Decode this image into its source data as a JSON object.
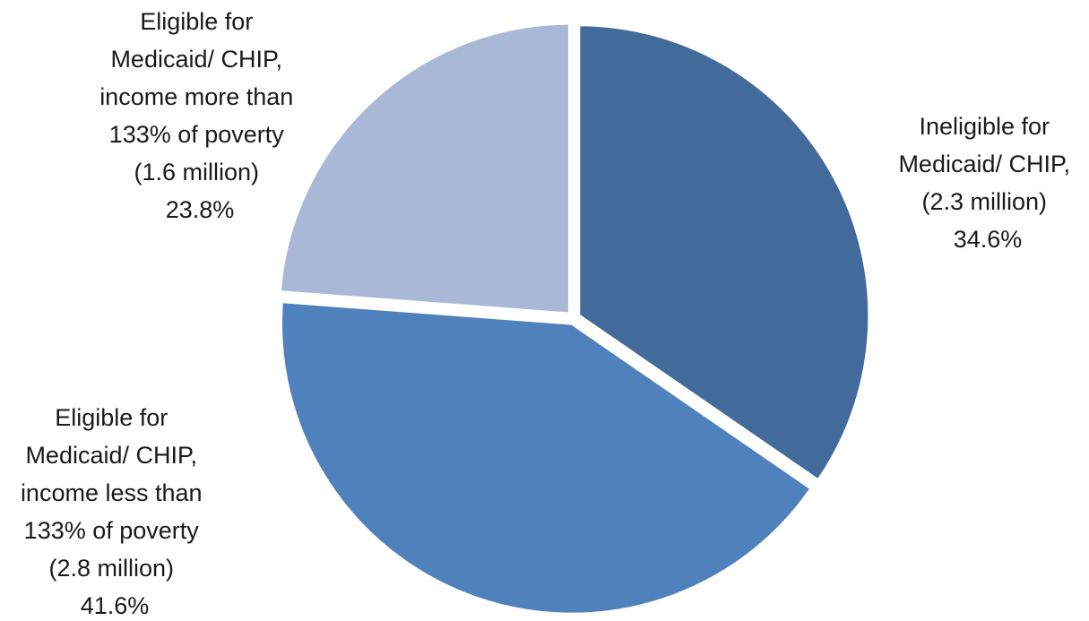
{
  "chart_data": {
    "type": "pie",
    "title": "",
    "slices": [
      {
        "label_lines": [
          "Ineligible for",
          "Medicaid/ CHIP,",
          "(2.3 million)"
        ],
        "value": 34.6,
        "value_label": "34.6%",
        "color": "#426a9b"
      },
      {
        "label_lines": [
          "Eligible for",
          "Medicaid/ CHIP,",
          "income less than",
          "133% of poverty",
          "(2.8 million)"
        ],
        "value": 41.6,
        "value_label": "41.6%",
        "color": "#4f81bd"
      },
      {
        "label_lines": [
          "Eligible for",
          "Medicaid/ CHIP,",
          "income more than",
          "133% of poverty",
          "(1.6 million)"
        ],
        "value": 23.8,
        "value_label": "23.8%",
        "color": "#a9b8d6"
      }
    ],
    "start_angle_deg": 0,
    "direction": "clockwise",
    "slice_separator_color": "#ffffff"
  }
}
